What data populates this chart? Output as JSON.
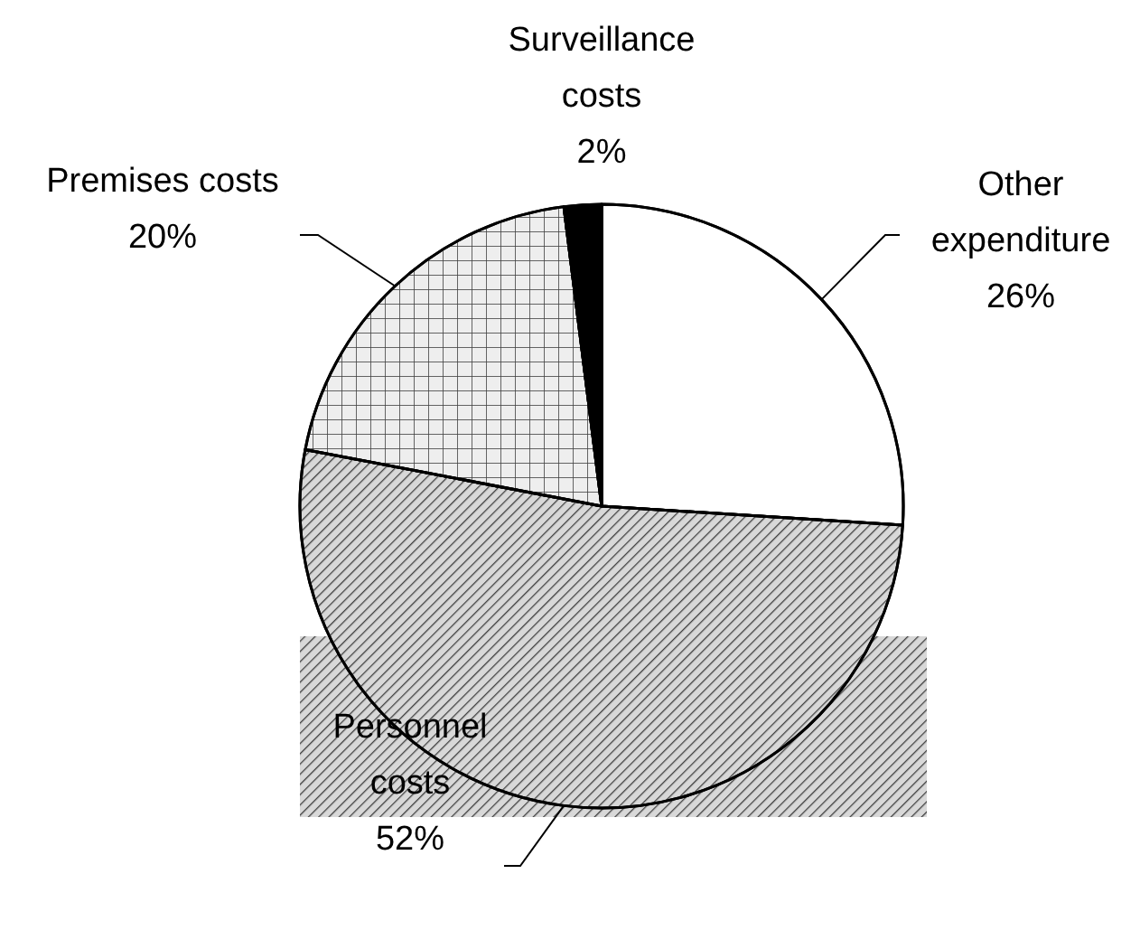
{
  "chart_data": {
    "type": "pie",
    "categories": [
      "Other expenditure",
      "Personnel costs",
      "Premises costs",
      "Surveillance costs"
    ],
    "values": [
      26,
      52,
      20,
      2
    ],
    "colors": [
      "#ffffff",
      "#d8d8d8",
      "#eeeeee",
      "#000000"
    ],
    "value_labels": [
      "26%",
      "52%",
      "20%",
      "2%"
    ]
  }
}
